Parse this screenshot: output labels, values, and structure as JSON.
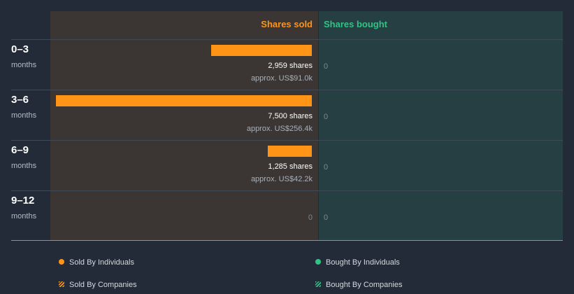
{
  "colors": {
    "sold": "#ff9416",
    "bought": "#2ec584",
    "sold_panel": "#3b3633",
    "bought_panel": "#263f43"
  },
  "chart_data": {
    "type": "bar",
    "orientation": "horizontal",
    "headers": {
      "sold": "Shares sold",
      "bought": "Shares bought"
    },
    "max_shares": 7500,
    "periods": [
      {
        "label": "0–3",
        "sublabel": "months",
        "sold_shares": 2959,
        "sold_shares_text": "2,959 shares",
        "sold_value_text": "approx. US$91.0k",
        "bought_shares": 0,
        "bought_text": "0"
      },
      {
        "label": "3–6",
        "sublabel": "months",
        "sold_shares": 7500,
        "sold_shares_text": "7,500 shares",
        "sold_value_text": "approx. US$256.4k",
        "bought_shares": 0,
        "bought_text": "0"
      },
      {
        "label": "6–9",
        "sublabel": "months",
        "sold_shares": 1285,
        "sold_shares_text": "1,285 shares",
        "sold_value_text": "approx. US$42.2k",
        "bought_shares": 0,
        "bought_text": "0"
      },
      {
        "label": "9–12",
        "sublabel": "months",
        "sold_shares": 0,
        "sold_zero_text": "0",
        "bought_shares": 0,
        "bought_text": "0"
      }
    ],
    "legend": [
      {
        "key": "sold-individuals",
        "label": "Sold By Individuals",
        "style": "dot",
        "color": "#ff9416"
      },
      {
        "key": "bought-individuals",
        "label": "Bought By Individuals",
        "style": "dot",
        "color": "#2ec584"
      },
      {
        "key": "sold-companies",
        "label": "Sold By Companies",
        "style": "hatch",
        "color": "#ff9416"
      },
      {
        "key": "bought-companies",
        "label": "Bought By Companies",
        "style": "hatch",
        "color": "#2ec584"
      }
    ]
  }
}
